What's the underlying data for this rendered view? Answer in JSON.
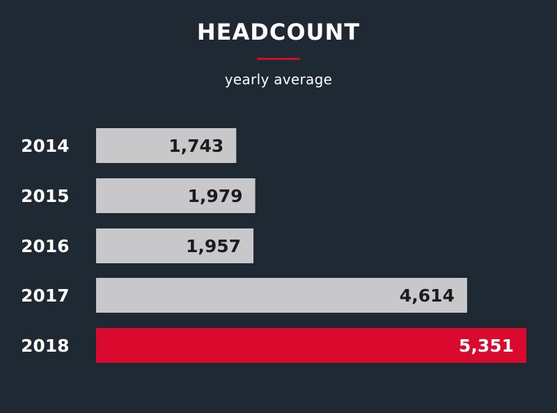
{
  "chart_data": {
    "type": "bar",
    "orientation": "horizontal",
    "title": "HEADCOUNT",
    "subtitle": "yearly average",
    "categories": [
      "2014",
      "2015",
      "2016",
      "2017",
      "2018"
    ],
    "values": [
      1743,
      1979,
      1957,
      4614,
      5351
    ],
    "value_labels": [
      "1,743",
      "1,979",
      "1,957",
      "4,614",
      "5,351"
    ],
    "highlight_index": 4,
    "grid": false,
    "legend": "none"
  },
  "colors": {
    "background": "#1f2933",
    "bar": "#c8c8ca",
    "bar_highlight": "#d90a2d",
    "accent_line": "#c8102e",
    "text_light": "#ffffff",
    "text_dark": "#1c1c1c"
  }
}
